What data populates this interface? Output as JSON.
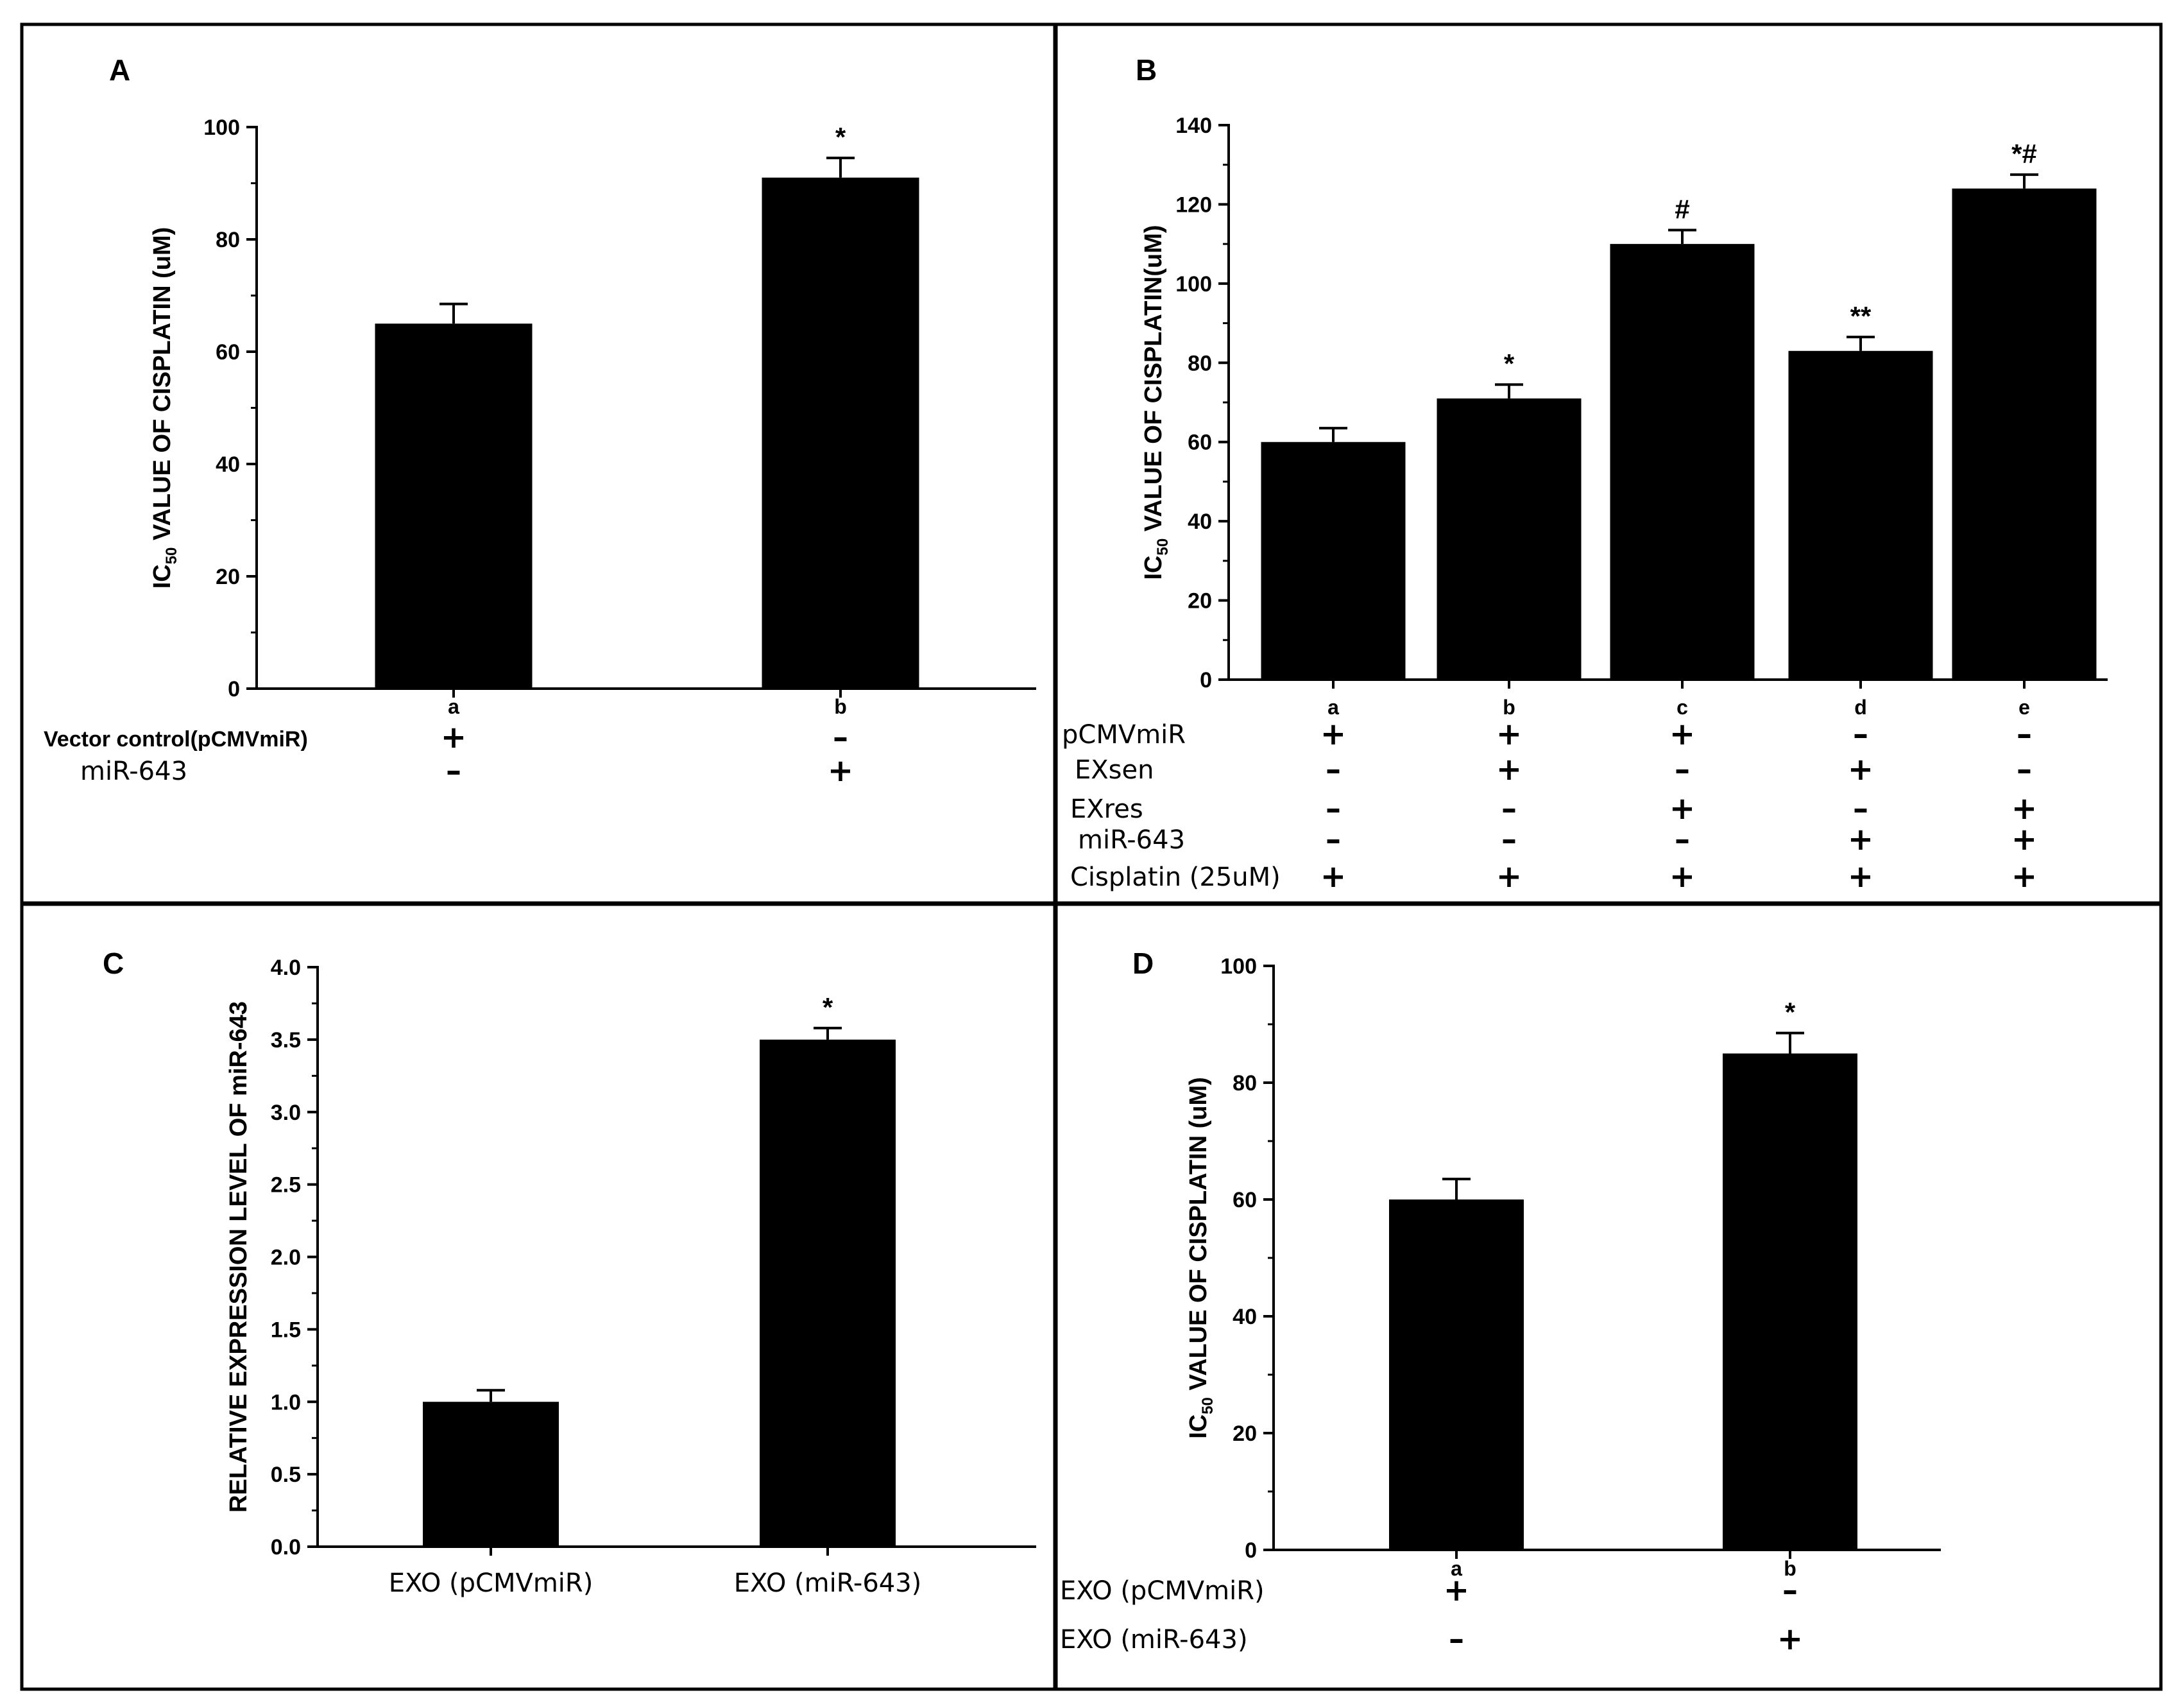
{
  "figure": {
    "border_color": "#000000",
    "bar_color": "#000000"
  },
  "chart_data": [
    {
      "panel": "A",
      "type": "bar",
      "categories": [
        "a",
        "b"
      ],
      "values": [
        65,
        91
      ],
      "errors": [
        3.5,
        3.5
      ],
      "annotations": [
        "",
        "*"
      ],
      "ylabel_prefix": "IC",
      "ylabel_sub": "50",
      "ylabel_rest": " VALUE OF CISPLATIN (uM)",
      "ylim": [
        0,
        100
      ],
      "yticks": [
        0,
        20,
        40,
        60,
        80,
        100
      ],
      "tick_labels": [
        "0",
        "20",
        "40",
        "60",
        "80",
        "100"
      ],
      "conditions": [
        {
          "label": "Vector control(pCMVmiR)",
          "signs": [
            "+",
            "–"
          ]
        },
        {
          "label": "miR-643",
          "signs": [
            "–",
            "+"
          ]
        }
      ]
    },
    {
      "panel": "B",
      "type": "bar",
      "categories": [
        "a",
        "b",
        "c",
        "d",
        "e"
      ],
      "values": [
        60,
        71,
        110,
        83,
        124
      ],
      "errors": [
        3.5,
        3.5,
        3.5,
        3.5,
        3.5
      ],
      "annotations": [
        "",
        "*",
        "#",
        "**",
        "*#"
      ],
      "ylabel_prefix": "IC",
      "ylabel_sub": "50",
      "ylabel_rest": " VALUE OF CISPLATIN(uM)",
      "ylim": [
        0,
        140
      ],
      "yticks": [
        0,
        20,
        40,
        60,
        80,
        100,
        120,
        140
      ],
      "tick_labels": [
        "0",
        "20",
        "40",
        "60",
        "80",
        "100",
        "120",
        "140"
      ],
      "conditions": [
        {
          "label": "pCMVmiR",
          "signs": [
            "+",
            "+",
            "+",
            "–",
            "–"
          ]
        },
        {
          "label": "EXsen",
          "signs": [
            "–",
            "+",
            "–",
            "+",
            "–"
          ]
        },
        {
          "label": "EXres",
          "signs": [
            "–",
            "–",
            "+",
            "–",
            "+"
          ]
        },
        {
          "label": "miR-643",
          "signs": [
            "–",
            "–",
            "–",
            "+",
            "+"
          ]
        },
        {
          "label": "Cisplatin (25uM)",
          "signs": [
            "+",
            "+",
            "+",
            "+",
            "+"
          ]
        }
      ]
    },
    {
      "panel": "C",
      "type": "bar",
      "categories": [
        "EXO (pCMVmiR)",
        "EXO (miR-643)"
      ],
      "values": [
        1.0,
        3.5
      ],
      "errors": [
        0.08,
        0.08
      ],
      "annotations": [
        "",
        "*"
      ],
      "ylabel_prefix": "RELATIVE EXPRESSION LEVEL OF miR-643",
      "ylabel_sub": "",
      "ylabel_rest": "",
      "ylim": [
        0,
        4.0
      ],
      "yticks": [
        0,
        0.5,
        1.0,
        1.5,
        2.0,
        2.5,
        3.0,
        3.5,
        4.0
      ],
      "tick_labels": [
        "0.0",
        "0.5",
        "1.0",
        "1.5",
        "2.0",
        "2.5",
        "3.0",
        "3.5",
        "4.0"
      ],
      "conditions": []
    },
    {
      "panel": "D",
      "type": "bar",
      "categories": [
        "a",
        "b"
      ],
      "values": [
        60,
        85
      ],
      "errors": [
        3.5,
        3.5
      ],
      "annotations": [
        "",
        "*"
      ],
      "ylabel_prefix": "IC",
      "ylabel_sub": "50",
      "ylabel_rest": " VALUE OF CISPLATIN (uM)",
      "ylim": [
        0,
        100
      ],
      "yticks": [
        0,
        20,
        40,
        60,
        80,
        100
      ],
      "tick_labels": [
        "0",
        "20",
        "40",
        "60",
        "80",
        "100"
      ],
      "conditions": [
        {
          "label": "EXO (pCMVmiR)",
          "signs": [
            "+",
            "–"
          ]
        },
        {
          "label": "EXO (miR-643)",
          "signs": [
            "–",
            "+"
          ]
        }
      ]
    }
  ]
}
